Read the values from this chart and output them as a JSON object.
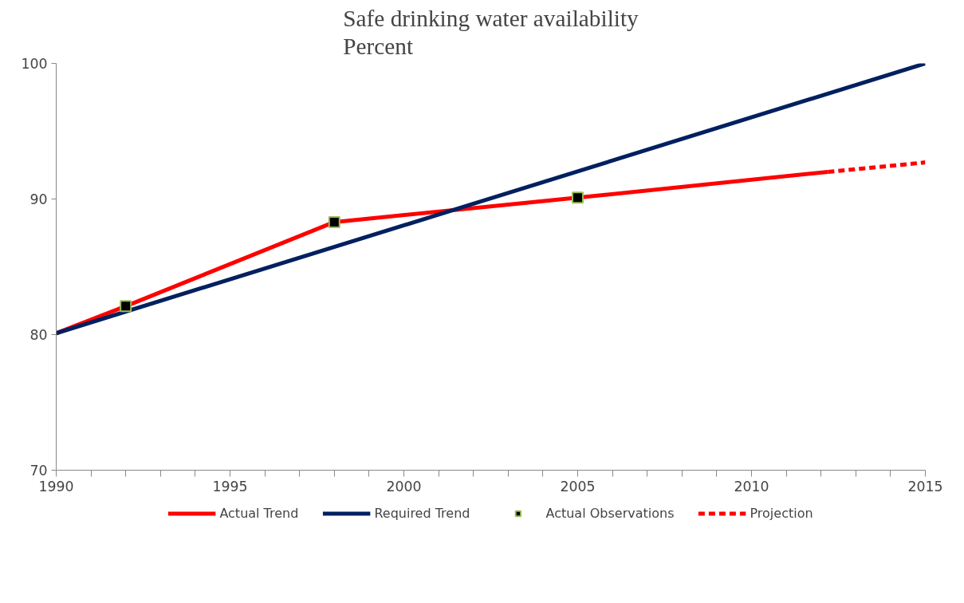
{
  "chart_data": {
    "type": "line",
    "title": "Safe drinking water availability\nPercent",
    "xlim": [
      1990,
      2015
    ],
    "ylim": [
      70,
      100
    ],
    "xticks": [
      1990,
      {
        "value": 1991,
        "label": null
      },
      {
        "value": 1992,
        "label": null
      },
      {
        "value": 1993,
        "label": null
      },
      {
        "value": 1994,
        "label": null
      },
      1995,
      {
        "value": 1996,
        "label": null
      },
      {
        "value": 1997,
        "label": null
      },
      {
        "value": 1998,
        "label": null
      },
      {
        "value": 1999,
        "label": null
      },
      2000,
      {
        "value": 2001,
        "label": null
      },
      {
        "value": 2002,
        "label": null
      },
      {
        "value": 2003,
        "label": null
      },
      {
        "value": 2004,
        "label": null
      },
      2005,
      {
        "value": 2006,
        "label": null
      },
      {
        "value": 2007,
        "label": null
      },
      {
        "value": 2008,
        "label": null
      },
      {
        "value": 2009,
        "label": null
      },
      2010,
      {
        "value": 2011,
        "label": null
      },
      {
        "value": 2012,
        "label": null
      },
      {
        "value": 2013,
        "label": null
      },
      {
        "value": 2014,
        "label": null
      },
      2015
    ],
    "yticks": [
      70,
      80,
      90,
      100
    ],
    "grid": false,
    "legend": "bottom",
    "series": [
      {
        "name": "Actual Trend",
        "color": "#ff0000",
        "line_style": "solid",
        "marker": "none",
        "x": [
          1990,
          1992,
          1998,
          2005,
          2012.2
        ],
        "values": [
          80.1,
          82.1,
          88.3,
          90.1,
          92.0
        ]
      },
      {
        "name": "Required Trend",
        "color": "#002060",
        "line_style": "solid",
        "marker": "none",
        "x": [
          1990,
          2015
        ],
        "values": [
          80.1,
          100
        ]
      },
      {
        "name": "Actual Observations",
        "type": "scatter",
        "color": "#000000",
        "marker": "square",
        "x": [
          1992,
          1998,
          2005
        ],
        "values": [
          82.1,
          88.3,
          90.1
        ]
      },
      {
        "name": "Projection",
        "color": "#ff0000",
        "line_style": "dashed",
        "marker": "none",
        "x": [
          2012.2,
          2015
        ],
        "values": [
          92.0,
          92.7
        ]
      }
    ]
  }
}
